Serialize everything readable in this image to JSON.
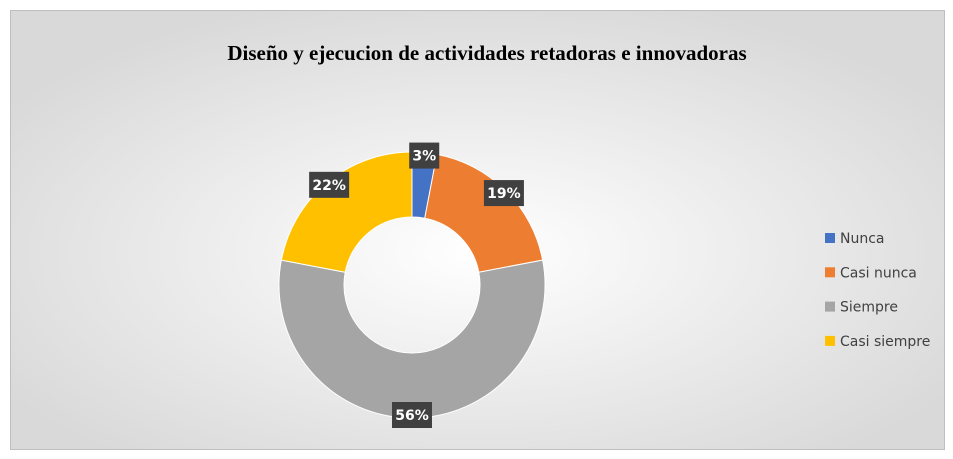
{
  "chart_data": {
    "type": "donut",
    "title": "Diseño  y ejecucion  de actividades retadoras e innovadoras",
    "categories": [
      "Nunca",
      "Casi nunca",
      "Siempre",
      "Casi siempre"
    ],
    "values": [
      3,
      19,
      56,
      22
    ],
    "value_labels": [
      "3%",
      "19%",
      "56%",
      "22%"
    ],
    "colors": [
      "#4472c4",
      "#ed7d31",
      "#a5a5a5",
      "#ffc000"
    ],
    "legend": "right"
  }
}
